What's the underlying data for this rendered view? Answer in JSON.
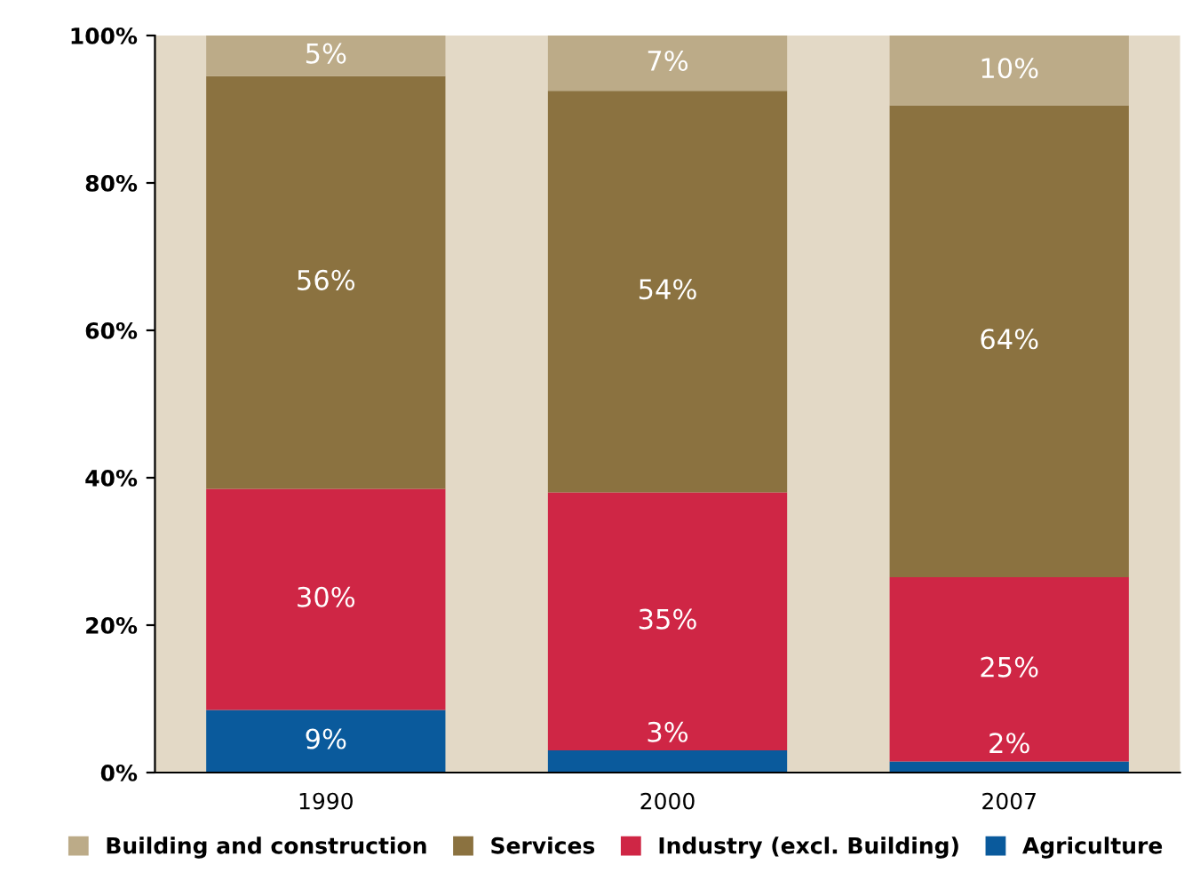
{
  "chart_data": {
    "type": "bar",
    "stacked": true,
    "categories": [
      "1990",
      "2000",
      "2007"
    ],
    "series": [
      {
        "name": "Agriculture",
        "color": "#0a5a9c",
        "values": [
          8.5,
          3,
          1.5
        ],
        "value_labels": [
          "9%",
          "3%",
          "2%"
        ]
      },
      {
        "name": "Industry (excl. Building)",
        "color": "#cf2645",
        "values": [
          30,
          35,
          25
        ],
        "value_labels": [
          "30%",
          "35%",
          "25%"
        ]
      },
      {
        "name": "Services",
        "color": "#8b7240",
        "values": [
          56,
          54.5,
          64
        ],
        "value_labels": [
          "56%",
          "54%",
          "64%"
        ]
      },
      {
        "name": "Building and construction",
        "color": "#bcab88",
        "values": [
          5.5,
          7.5,
          9.5
        ],
        "value_labels": [
          "5%",
          "7%",
          "10%"
        ]
      }
    ],
    "ylim": [
      0,
      100
    ],
    "yticks": [
      {
        "value": 0,
        "label": "0%"
      },
      {
        "value": 20,
        "label": "20%"
      },
      {
        "value": 40,
        "label": "40%"
      },
      {
        "value": 60,
        "label": "60%"
      },
      {
        "value": 80,
        "label": "80%"
      },
      {
        "value": 100,
        "label": "100%"
      }
    ],
    "legend": "bottom",
    "grid": false
  }
}
